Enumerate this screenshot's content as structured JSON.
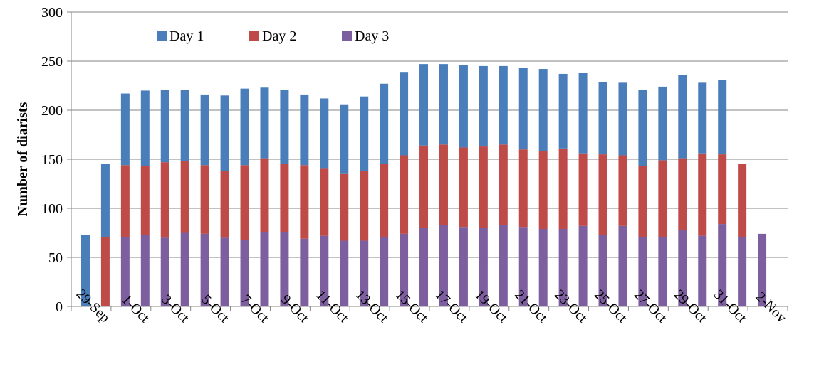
{
  "chart_data": {
    "type": "stacked_bar",
    "y_label": "Number of diarists",
    "categories": [
      null,
      "29-Sep",
      null,
      "1-Oct",
      null,
      "3-Oct",
      null,
      "5-Oct",
      null,
      "7-Oct",
      null,
      "9-Oct",
      null,
      "11-Oct",
      null,
      "13-Oct",
      null,
      "15-Oct",
      null,
      "17-Oct",
      null,
      "19-Oct",
      null,
      "21-Oct",
      null,
      "23-Oct",
      null,
      "25-Oct",
      null,
      "27-Oct",
      null,
      "29-Oct",
      null,
      "31-Oct",
      null,
      "2-Nov"
    ],
    "series": [
      {
        "name": "Day 1",
        "color": "#4a7ebb",
        "values": [
          73,
          74,
          73,
          77,
          74,
          73,
          72,
          77,
          78,
          72,
          76,
          72,
          71,
          71,
          76,
          82,
          85,
          83,
          82,
          84,
          82,
          80,
          83,
          84,
          76,
          82,
          74,
          74,
          78,
          75,
          85,
          72,
          76,
          null,
          null,
          null
        ]
      },
      {
        "name": "Day 2",
        "color": "#be4b48",
        "values": [
          null,
          71,
          73,
          70,
          77,
          73,
          70,
          68,
          76,
          75,
          69,
          75,
          69,
          68,
          71,
          74,
          80,
          84,
          82,
          81,
          83,
          82,
          79,
          79,
          82,
          74,
          82,
          72,
          72,
          78,
          73,
          84,
          71,
          74,
          null,
          null
        ]
      },
      {
        "name": "Day 3",
        "color": "#7d5fa0",
        "values": [
          null,
          null,
          71,
          73,
          70,
          75,
          74,
          70,
          68,
          76,
          76,
          69,
          72,
          67,
          67,
          71,
          74,
          80,
          83,
          81,
          80,
          83,
          81,
          79,
          79,
          82,
          73,
          82,
          71,
          71,
          78,
          72,
          84,
          71,
          74,
          null
        ]
      }
    ],
    "ylim": [
      0,
      300
    ],
    "yticks": [
      0,
      50,
      100,
      150,
      200,
      250,
      300
    ],
    "grid": true,
    "legend": "top-left"
  }
}
